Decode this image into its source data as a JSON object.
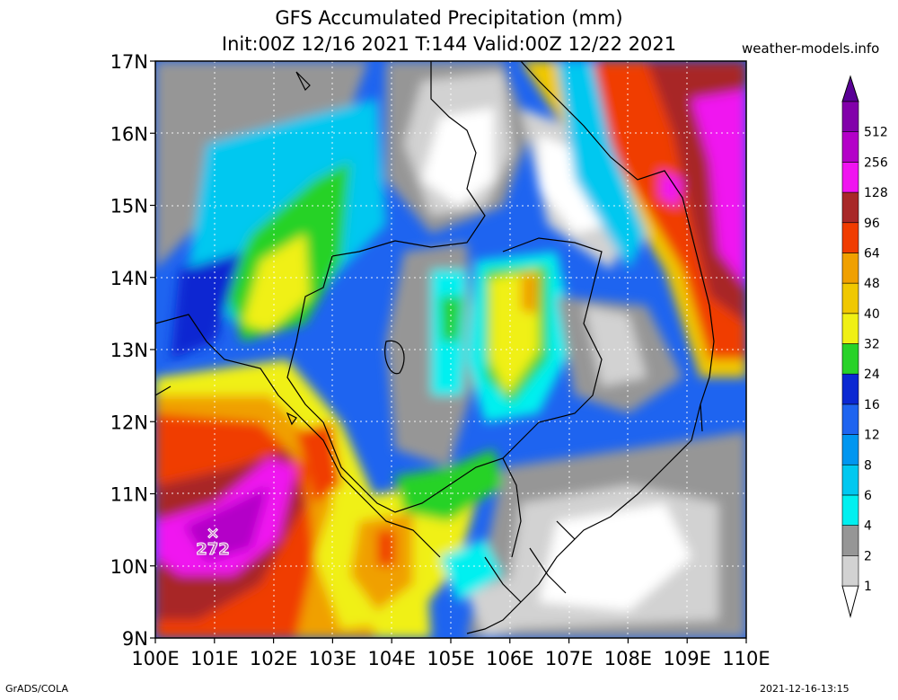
{
  "header": {
    "title": "GFS Accumulated Precipitation (mm)",
    "subtitle": "Init:00Z 12/16 2021 T:144 Valid:00Z 12/22 2021",
    "site": "weather-models.info"
  },
  "footer": {
    "left": "GrADS/COLA",
    "right": "2021-12-16-13:15"
  },
  "map": {
    "lon_labels": [
      "100E",
      "101E",
      "102E",
      "103E",
      "104E",
      "105E",
      "106E",
      "107E",
      "108E",
      "109E",
      "110E"
    ],
    "lat_labels": [
      "17N",
      "16N",
      "15N",
      "14N",
      "13N",
      "12N",
      "11N",
      "10N",
      "9N"
    ],
    "max_marker": {
      "label": "272",
      "lon": 101.0,
      "lat": 10.5
    }
  },
  "legend": {
    "levels": [
      {
        "label": "1",
        "color": "#d2d2d2"
      },
      {
        "label": "2",
        "color": "#969696"
      },
      {
        "label": "4",
        "color": "#00f0f0"
      },
      {
        "label": "6",
        "color": "#00c8f0"
      },
      {
        "label": "8",
        "color": "#0096f0"
      },
      {
        "label": "12",
        "color": "#1e64f0"
      },
      {
        "label": "16",
        "color": "#0a28d2"
      },
      {
        "label": "24",
        "color": "#28d228"
      },
      {
        "label": "32",
        "color": "#f0f014"
      },
      {
        "label": "40",
        "color": "#f0c800"
      },
      {
        "label": "48",
        "color": "#f0a000"
      },
      {
        "label": "64",
        "color": "#f03c00"
      },
      {
        "label": "96",
        "color": "#a82828"
      },
      {
        "label": "128",
        "color": "#f014f0"
      },
      {
        "label": "256",
        "color": "#b400c8"
      },
      {
        "label": "512",
        "color": "#8200aa"
      }
    ],
    "top_color": "#5a0096"
  }
}
